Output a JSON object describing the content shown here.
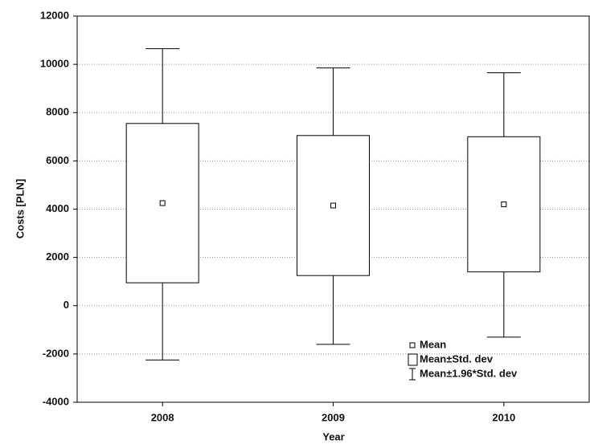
{
  "chart_data": {
    "type": "box",
    "x_label": "Year",
    "y_label": "Costs [PLN]",
    "categories": [
      "2008",
      "2009",
      "2010"
    ],
    "mean": [
      4250,
      4150,
      4200
    ],
    "sd_low": [
      950,
      1250,
      1400
    ],
    "sd_high": [
      7550,
      7050,
      7000
    ],
    "whisker_low": [
      -2250,
      -1600,
      -1300
    ],
    "whisker_high": [
      10650,
      9850,
      9650
    ],
    "legend": [
      "Mean",
      "Mean±Std. dev",
      "Mean±1.96*Std. dev"
    ],
    "ylim": [
      -4000,
      12000
    ],
    "yticks": [
      -4000,
      -2000,
      0,
      2000,
      4000,
      6000,
      8000,
      10000,
      12000
    ],
    "grid": true,
    "color": "#000000"
  }
}
